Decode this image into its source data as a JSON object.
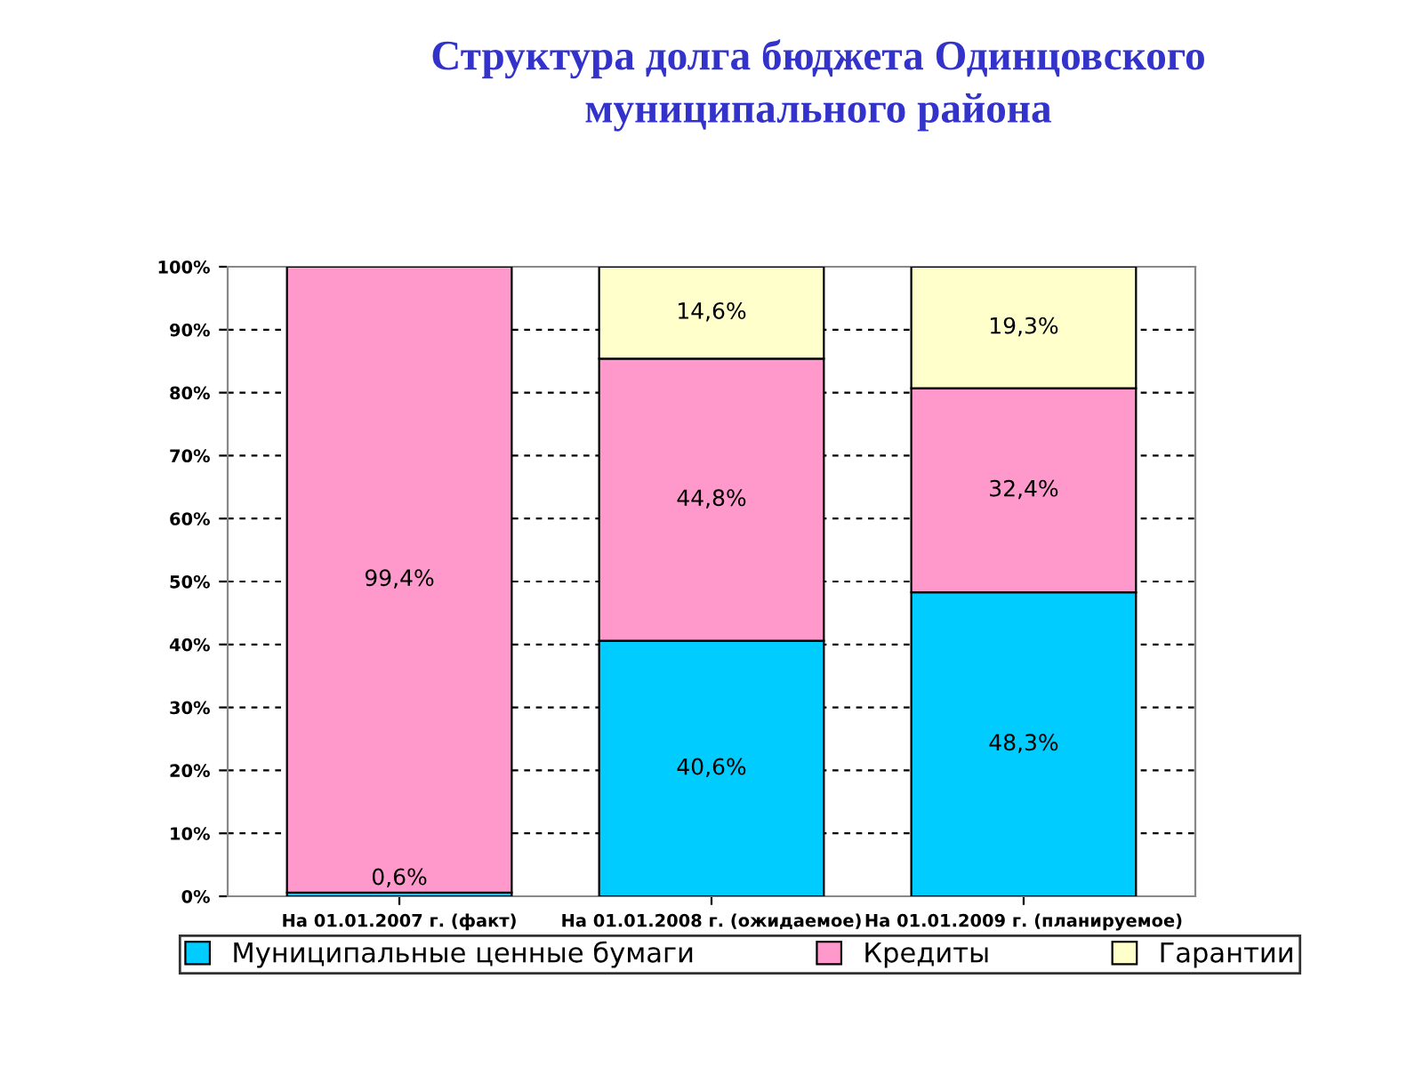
{
  "chart_data": {
    "type": "bar",
    "stacked": true,
    "title": "Структура долга бюджета Одинцовского\nмуниципального района",
    "categories": [
      "На 01.01.2007 г. (факт)",
      "На 01.01.2008 г. (ожидаемое)",
      "На 01.01.2009 г. (планируемое)"
    ],
    "series": [
      {
        "name": "Муниципальные ценные бумаги",
        "color": "#00ccff",
        "values": [
          0.6,
          40.6,
          48.3
        ],
        "value_labels": [
          "0,6%",
          "40,6%",
          "48,3%"
        ]
      },
      {
        "name": "Кредиты",
        "color": "#ff99cc",
        "values": [
          99.4,
          44.8,
          32.4
        ],
        "value_labels": [
          "99,4%",
          "44,8%",
          "32,4%"
        ]
      },
      {
        "name": "Гарантии",
        "color": "#ffffcc",
        "values": [
          null,
          14.6,
          19.3
        ],
        "value_labels": [
          null,
          "14,6%",
          "19,3%"
        ]
      }
    ],
    "ylim": [
      0,
      100
    ],
    "yticks": [
      {
        "value": 0,
        "label": "0%"
      },
      {
        "value": 10,
        "label": "10%"
      },
      {
        "value": 20,
        "label": "20%"
      },
      {
        "value": 30,
        "label": "30%"
      },
      {
        "value": 40,
        "label": "40%"
      },
      {
        "value": 50,
        "label": "50%"
      },
      {
        "value": 60,
        "label": "60%"
      },
      {
        "value": 70,
        "label": "70%"
      },
      {
        "value": 80,
        "label": "80%"
      },
      {
        "value": 90,
        "label": "90%"
      },
      {
        "value": 100,
        "label": "100%"
      }
    ],
    "grid": "y",
    "legend": "bottom"
  }
}
